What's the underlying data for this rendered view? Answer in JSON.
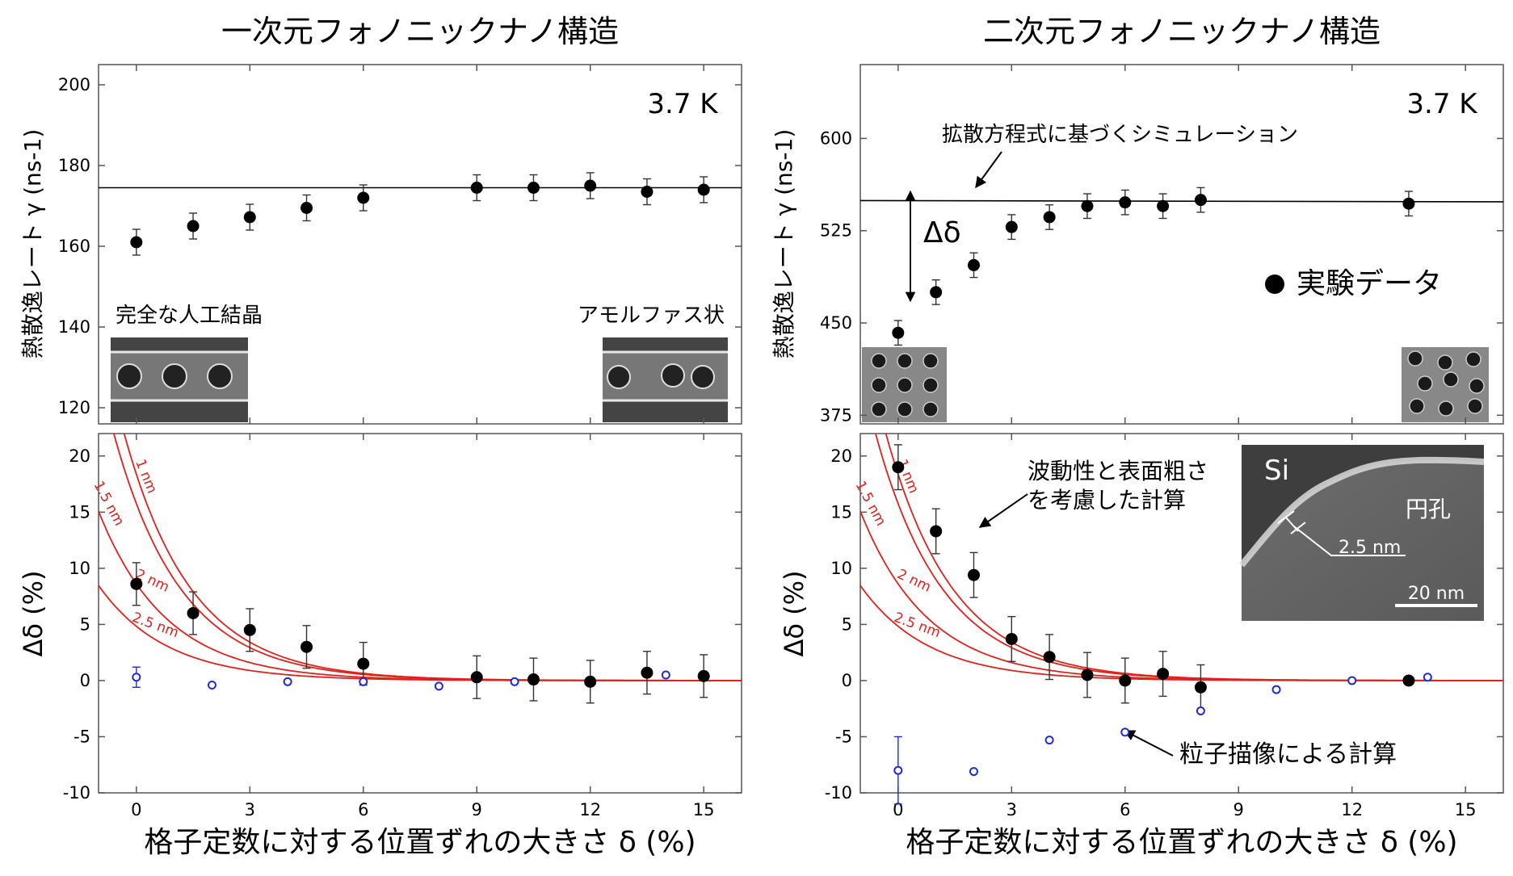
{
  "colors": {
    "model": "#e0201b",
    "data": "#000000",
    "particle": "#1f2bd6",
    "frame": "#555555"
  },
  "chart_data": [
    {
      "id": "left",
      "type": "scatter",
      "title": "一次元フォノニックナノ構造",
      "xlabel": "格子定数に対する位置ずれの大きさ δ (%)",
      "xlim": [
        -1,
        16
      ],
      "xticks": [
        0,
        3,
        6,
        9,
        12,
        15
      ],
      "top": {
        "ylabel": "熱散逸レート γ (ns-1)",
        "ylim": [
          116,
          205
        ],
        "yticks": [
          120,
          140,
          160,
          180,
          200
        ],
        "temperature": "3.7 K",
        "simulation_line": {
          "y_at_xmin": 174.5,
          "y_at_xmax": 174.5
        },
        "series": [
          {
            "type": "scatter_errorbar",
            "x": [
              0,
              1.5,
              3,
              4.5,
              6,
              9,
              10.5,
              12,
              13.5,
              15
            ],
            "y": [
              161,
              165,
              167.2,
              169.5,
              172,
              174.5,
              174.5,
              175,
              173.5,
              174
            ],
            "err": [
              3.2,
              3.2,
              3.2,
              3.2,
              3.2,
              3.2,
              3.2,
              3.2,
              3.2,
              3.2
            ]
          }
        ],
        "labels": {
          "inset_left": "完全な人工結晶",
          "inset_right": "アモルファス状"
        }
      },
      "bottom": {
        "ylabel": "Δδ (%)",
        "ylim": [
          -10,
          22
        ],
        "yticks": [
          -10,
          -5,
          0,
          5,
          10,
          15,
          20
        ],
        "curves": [
          {
            "label": "1 nm",
            "A": 45,
            "x0": -1.6,
            "k": 0.56
          },
          {
            "label": "1.5 nm",
            "A": 30,
            "x0": -1.15,
            "k": 0.56
          },
          {
            "label": "2 nm",
            "A": 11.4,
            "x0": -0.5,
            "k": 0.56
          },
          {
            "label": "2.5 nm",
            "A": 6.4,
            "x0": -0.5,
            "k": 0.56
          }
        ],
        "series": [
          {
            "name": "experiment",
            "type": "scatter_errorbar",
            "x": [
              0,
              1.5,
              3,
              4.5,
              6,
              9,
              10.5,
              12,
              13.5,
              15
            ],
            "y": [
              8.6,
              6.0,
              4.5,
              3.0,
              1.5,
              0.3,
              0.1,
              -0.1,
              0.7,
              0.4
            ],
            "err": [
              1.9,
              1.9,
              1.9,
              1.9,
              1.9,
              1.9,
              1.9,
              1.9,
              1.9,
              1.9
            ]
          },
          {
            "name": "particle",
            "type": "scatter_open",
            "x": [
              0,
              2,
              4,
              6,
              8,
              10,
              14
            ],
            "y": [
              0.3,
              -0.4,
              -0.1,
              -0.1,
              -0.5,
              -0.1,
              0.5
            ],
            "err": [
              0.9,
              0,
              0,
              0,
              0,
              0,
              0
            ]
          }
        ]
      }
    },
    {
      "id": "right",
      "type": "scatter",
      "title": "二次元フォノニックナノ構造",
      "xlabel": "格子定数に対する位置ずれの大きさ δ (%)",
      "xlim": [
        -1,
        16
      ],
      "xticks": [
        0,
        3,
        6,
        9,
        12,
        15
      ],
      "top": {
        "ylabel": "熱散逸レート γ (ns-1)",
        "ylim": [
          368,
          660
        ],
        "yticks": [
          375,
          450,
          525,
          600
        ],
        "temperature": "3.7 K",
        "simulation_line": {
          "y_at_xmin": 549.5,
          "y_at_xmax": 548.5
        },
        "series": [
          {
            "type": "scatter_errorbar",
            "x": [
              0,
              1,
              2,
              3,
              4,
              5,
              6,
              7,
              8,
              13.5
            ],
            "y": [
              442,
              475,
              497,
              528,
              536,
              545,
              548,
              545,
              550,
              547
            ],
            "err": [
              10,
              10,
              10,
              10,
              10,
              10,
              10,
              10,
              10,
              10
            ]
          }
        ],
        "labels": {
          "simulation": "拡散方程式に基づくシミュレーション",
          "delta": "Δδ",
          "legend": "実験データ"
        }
      },
      "bottom": {
        "ylabel": "Δδ (%)",
        "ylim": [
          -10,
          22
        ],
        "yticks": [
          -10,
          -5,
          0,
          5,
          10,
          15,
          20
        ],
        "curves": [
          {
            "label": "1 nm",
            "A": 45,
            "x0": -1.6,
            "k": 0.56
          },
          {
            "label": "1.5 nm",
            "A": 30,
            "x0": -1.15,
            "k": 0.56
          },
          {
            "label": "2 nm",
            "A": 11.4,
            "x0": -0.5,
            "k": 0.56
          },
          {
            "label": "2.5 nm",
            "A": 6.4,
            "x0": -0.5,
            "k": 0.56
          }
        ],
        "series": [
          {
            "name": "experiment",
            "type": "scatter_errorbar",
            "x": [
              0,
              1,
              2,
              3,
              4,
              5,
              6,
              7,
              8,
              13.5
            ],
            "y": [
              19,
              13.3,
              9.4,
              3.7,
              2.1,
              0.5,
              0,
              0.6,
              -0.6,
              0
            ],
            "err": [
              2,
              2,
              2,
              2,
              2,
              2,
              2,
              2,
              2,
              0
            ]
          },
          {
            "name": "particle",
            "type": "scatter_open",
            "x": [
              0,
              2,
              4,
              6,
              8,
              10,
              12,
              14
            ],
            "y": [
              -8,
              -8.1,
              -5.3,
              -4.6,
              -2.7,
              -0.8,
              0,
              0.3
            ],
            "err": [
              3,
              0,
              0,
              0,
              0,
              0,
              0,
              0
            ]
          }
        ],
        "labels": {
          "wave": [
            "波動性と表面粗さ",
            "を考慮した計算"
          ],
          "particle": "粒子描像による計算",
          "sem_material": "Si",
          "sem_hole": "円孔",
          "sem_thickness": "2.5 nm",
          "sem_scale": "20 nm"
        }
      }
    }
  ]
}
